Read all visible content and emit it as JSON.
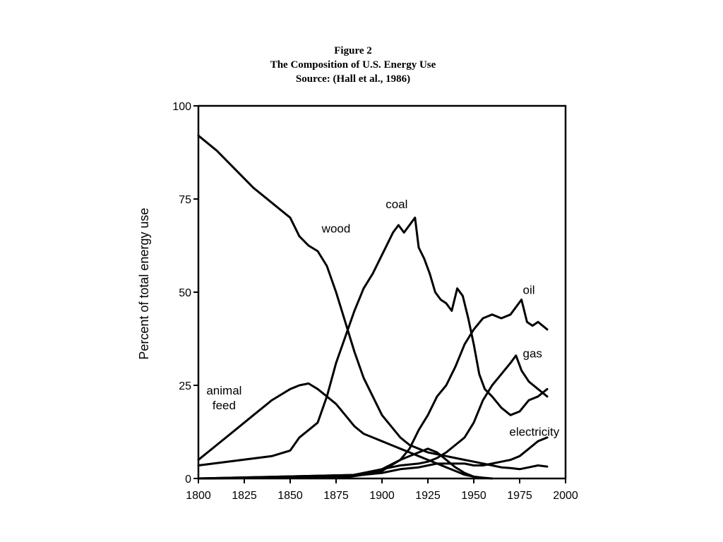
{
  "chart_data": {
    "type": "line",
    "title_lines": [
      "Figure 2",
      "The Composition of U.S. Energy Use",
      "Source: (Hall et al., 1986)"
    ],
    "xlabel": "",
    "ylabel": "Percent of total energy use",
    "xlim": [
      1800,
      2000
    ],
    "ylim": [
      0,
      100
    ],
    "xticks": [
      1800,
      1825,
      1850,
      1875,
      1900,
      1925,
      1950,
      1975,
      2000
    ],
    "yticks": [
      0,
      25,
      50,
      75,
      100
    ],
    "grid": false,
    "legend": "none",
    "series": [
      {
        "name": "wood",
        "label_at": [
          1875,
          66
        ],
        "x": [
          1800,
          1810,
          1820,
          1830,
          1840,
          1850,
          1855,
          1860,
          1865,
          1870,
          1875,
          1880,
          1885,
          1890,
          1895,
          1900,
          1905,
          1910,
          1915,
          1920,
          1925,
          1930,
          1935,
          1940,
          1945,
          1950,
          1955,
          1960,
          1965,
          1970,
          1975,
          1980,
          1985,
          1990
        ],
        "y": [
          92,
          88,
          83,
          78,
          74,
          70,
          65,
          62.5,
          61,
          57,
          50,
          42,
          34,
          27,
          22,
          17,
          14,
          11,
          9,
          8,
          7,
          6.5,
          6,
          5.5,
          5,
          4.5,
          4,
          3.5,
          3,
          2.8,
          2.5,
          3,
          3.5,
          3.2
        ]
      },
      {
        "name": "coal",
        "label_at": [
          1908,
          72.5
        ],
        "x": [
          1800,
          1840,
          1850,
          1855,
          1860,
          1865,
          1870,
          1875,
          1880,
          1885,
          1890,
          1895,
          1900,
          1903,
          1906,
          1909,
          1912,
          1915,
          1918,
          1920,
          1923,
          1926,
          1929,
          1932,
          1935,
          1938,
          1941,
          1944,
          1947,
          1950,
          1953,
          1956,
          1960,
          1965,
          1970,
          1975,
          1980,
          1985,
          1990
        ],
        "y": [
          3.5,
          6,
          7.5,
          11,
          13,
          15,
          22,
          31,
          38,
          45,
          51,
          55,
          60,
          63,
          66,
          68,
          66,
          68,
          70,
          62,
          59,
          55,
          50,
          48,
          47,
          45,
          51,
          49,
          43,
          36,
          28,
          24,
          22,
          19,
          17,
          18,
          21,
          22,
          24
        ]
      },
      {
        "name": "oil",
        "label_at": [
          1980,
          49.5
        ],
        "x": [
          1800,
          1890,
          1900,
          1905,
          1910,
          1915,
          1920,
          1925,
          1930,
          1935,
          1940,
          1945,
          1950,
          1955,
          1960,
          1965,
          1970,
          1973,
          1976,
          1979,
          1982,
          1985,
          1990
        ],
        "y": [
          0,
          1,
          2,
          3.5,
          5,
          8,
          13,
          17,
          22,
          25,
          30,
          36,
          40,
          43,
          44,
          43,
          44,
          46,
          48,
          42,
          41,
          42,
          40
        ]
      },
      {
        "name": "gas",
        "label_at": [
          1982,
          32.5
        ],
        "x": [
          1800,
          1890,
          1900,
          1910,
          1920,
          1925,
          1930,
          1935,
          1940,
          1945,
          1950,
          1955,
          1960,
          1965,
          1970,
          1973,
          1976,
          1980,
          1985,
          1990
        ],
        "y": [
          0,
          1,
          2.5,
          3.5,
          4,
          4.5,
          5.5,
          7,
          9,
          11,
          15,
          21,
          25,
          28,
          31,
          33,
          29,
          26,
          24,
          22
        ]
      },
      {
        "name": "animal feed",
        "label_lines": [
          "animal",
          "feed"
        ],
        "label_at": [
          1814,
          22.5
        ],
        "x": [
          1800,
          1810,
          1820,
          1830,
          1840,
          1850,
          1855,
          1860,
          1865,
          1870,
          1875,
          1880,
          1885,
          1890,
          1895,
          1900,
          1905,
          1910,
          1915,
          1920,
          1925,
          1930,
          1935,
          1940,
          1945,
          1950
        ],
        "y": [
          5,
          9,
          13,
          17,
          21,
          24,
          25,
          25.5,
          24,
          22,
          20,
          17,
          14,
          12,
          11,
          10,
          9,
          8,
          7,
          6,
          5,
          4,
          3,
          2,
          1,
          0.5
        ]
      },
      {
        "name": "electricity",
        "label_at": [
          1983,
          11.5
        ],
        "x": [
          1800,
          1880,
          1890,
          1900,
          1910,
          1920,
          1925,
          1930,
          1935,
          1940,
          1945,
          1950,
          1955,
          1960,
          1965,
          1970,
          1975,
          1980,
          1985,
          1990
        ],
        "y": [
          0,
          0.3,
          1,
          1.5,
          2.5,
          3,
          3.5,
          4,
          4,
          4,
          4,
          3.5,
          3.5,
          4,
          4.5,
          5,
          6,
          8,
          10,
          11
        ]
      },
      {
        "name": "",
        "label_at": null,
        "x": [
          1800,
          1880,
          1890,
          1900,
          1910,
          1920,
          1925,
          1930,
          1935,
          1940,
          1945,
          1950,
          1955,
          1960
        ],
        "y": [
          0,
          0.5,
          1.5,
          2.5,
          5,
          7,
          8,
          7,
          5,
          3,
          1.5,
          0.5,
          0.2,
          0
        ]
      }
    ]
  }
}
